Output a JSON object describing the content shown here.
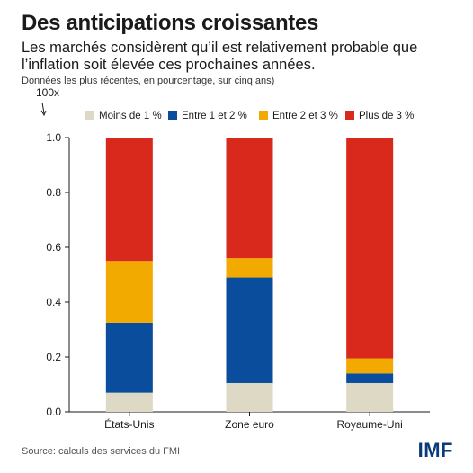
{
  "header": {
    "title": "Des anticipations croissantes",
    "subtitle": "Les marchés considèrent qu’il est relativement probable que l’inflation soit élevée ces prochaines années.",
    "note": "Données les plus récentes, en pourcentage, sur cinq ans)"
  },
  "footer": {
    "source": "Source: calculs des services du FMI",
    "logo": "IMF"
  },
  "chart_data": {
    "type": "bar",
    "stacked": true,
    "title": "Des anticipations croissantes",
    "unit_label": "100x",
    "categories": [
      "États-Unis",
      "Zone euro",
      "Royaume-Uni"
    ],
    "series": [
      {
        "name": "Moins de 1 %",
        "color": "#ddd9c4",
        "values": [
          0.07,
          0.105,
          0.105
        ]
      },
      {
        "name": "Entre 1 et 2 %",
        "color": "#0a4d9c",
        "values": [
          0.255,
          0.385,
          0.035
        ]
      },
      {
        "name": "Entre 2 et 3 %",
        "color": "#f2a900",
        "values": [
          0.225,
          0.07,
          0.055
        ]
      },
      {
        "name": "Plus de 3 %",
        "color": "#d9291c",
        "values": [
          0.45,
          0.44,
          0.805
        ]
      }
    ],
    "ylim": [
      0,
      1
    ],
    "yticks": [
      "0.0",
      "0.2",
      "0.4",
      "0.6",
      "0.8",
      "1.0"
    ],
    "legend": "top",
    "grid": false
  }
}
